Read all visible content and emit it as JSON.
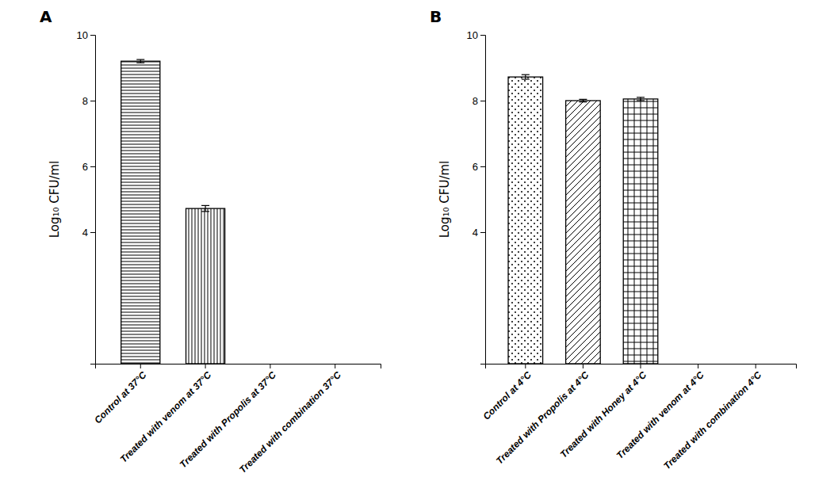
{
  "chart_data": [
    {
      "type": "bar",
      "title": "A",
      "categories": [
        "Control at 37°C",
        "Treated with venom at 37°C",
        "Treated with Propolis at 37°C",
        "Treated with combination 37°C"
      ],
      "values": [
        9.2,
        4.72,
        0.0,
        0.0
      ],
      "errors": [
        0.05,
        0.09,
        0.0,
        0.0
      ],
      "y_label": "Log₁₀ CFU/ml",
      "ylim": [
        0,
        10
      ],
      "yticks": [
        4,
        6,
        8,
        10
      ],
      "color": "white",
      "grid": false
    },
    {
      "type": "bar",
      "title": "B",
      "categories": [
        "Control at 4°C",
        "Treated with Propolis at 4°C",
        "Treated with Honey at 4°C",
        "Treated with venom at 4°C",
        "Treated with combination 4°C"
      ],
      "values": [
        8.72,
        8.0,
        8.05,
        0.0,
        0.0
      ],
      "errors": [
        0.07,
        0.04,
        0.05,
        0.0,
        0.0
      ],
      "y_label": "Log₁₀ CFU/ml",
      "ylim": [
        0,
        10
      ],
      "yticks": [
        4,
        6,
        8,
        10
      ],
      "color": "white",
      "grid": false
    }
  ]
}
